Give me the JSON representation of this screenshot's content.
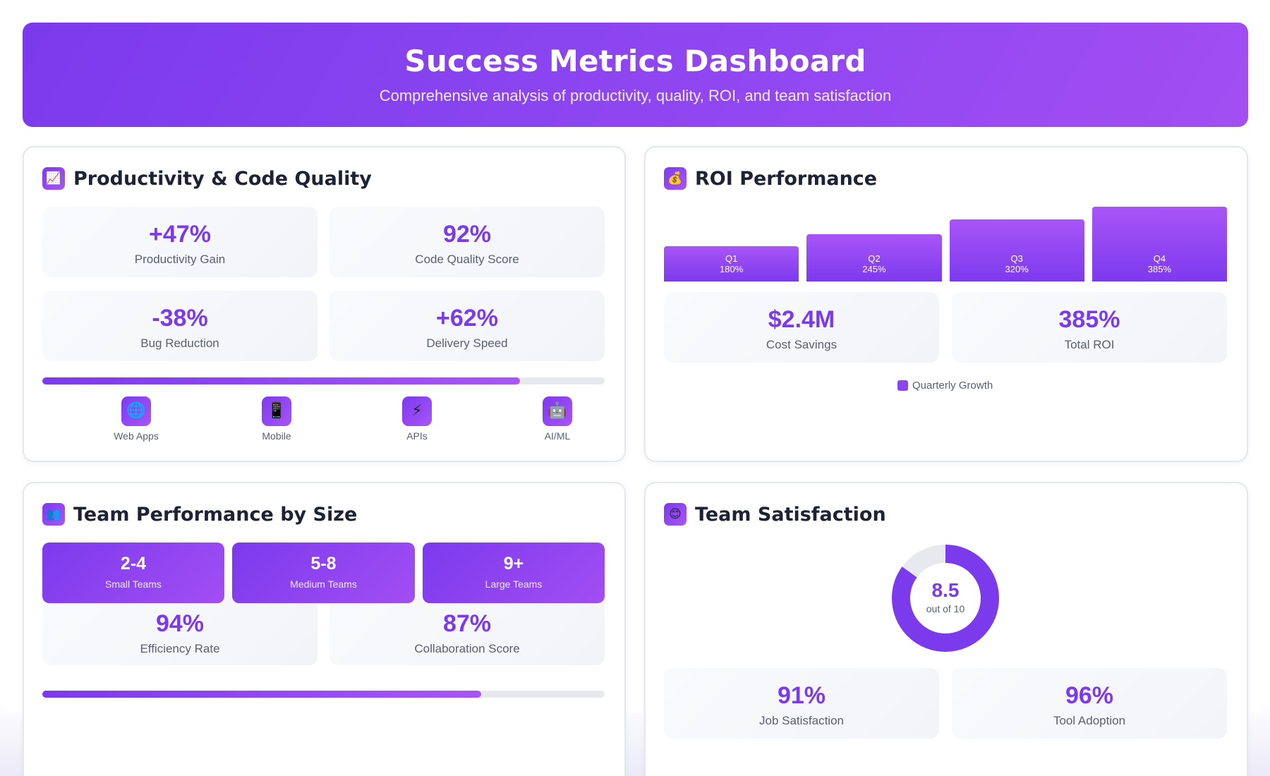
{
  "header": {
    "title": "Success Metrics Dashboard",
    "subtitle": "Comprehensive analysis of productivity, quality, ROI, and team satisfaction"
  },
  "productivity": {
    "title": "Productivity & Code Quality",
    "icon": "chart-increasing-icon",
    "metrics": [
      {
        "value": "+47%",
        "label": "Productivity Gain"
      },
      {
        "value": "92%",
        "label": "Code Quality Score"
      },
      {
        "value": "-38%",
        "label": "Bug Reduction"
      },
      {
        "value": "+62%",
        "label": "Delivery Speed"
      }
    ],
    "progress": 0.85,
    "platforms": [
      {
        "label": "Web Apps",
        "icon": "globe-icon",
        "glyph": "🌐"
      },
      {
        "label": "Mobile",
        "icon": "mobile-phone-icon",
        "glyph": "📱"
      },
      {
        "label": "APIs",
        "icon": "lightning-icon",
        "glyph": "⚡"
      },
      {
        "label": "AI/ML",
        "icon": "robot-icon",
        "glyph": "🤖"
      }
    ]
  },
  "roi": {
    "title": "ROI Performance",
    "icon": "money-bag-icon",
    "metrics": [
      {
        "value": "$2.4M",
        "label": "Cost Savings"
      },
      {
        "value": "385%",
        "label": "Total ROI"
      }
    ],
    "legend": "Quarterly Growth"
  },
  "chart_data": {
    "type": "bar",
    "categories": [
      "Q1",
      "Q2",
      "Q3",
      "Q4"
    ],
    "values": [
      180,
      245,
      320,
      385
    ],
    "value_labels": [
      "180%",
      "245%",
      "320%",
      "385%"
    ],
    "series": [
      {
        "name": "Quarterly Growth",
        "values": [
          180,
          245,
          320,
          385
        ]
      }
    ],
    "legend_position": "bottom-center",
    "grid": false,
    "color": "#8b45f0"
  },
  "team_size": {
    "title": "Team Performance by Size",
    "icon": "people-icon",
    "sizes": [
      {
        "value": "2-4",
        "label": "Small Teams"
      },
      {
        "value": "5-8",
        "label": "Medium Teams"
      },
      {
        "value": "9+",
        "label": "Large Teams"
      }
    ],
    "metrics": [
      {
        "value": "94%",
        "label": "Efficiency Rate"
      },
      {
        "value": "87%",
        "label": "Collaboration Score"
      }
    ],
    "progress": 0.78
  },
  "satisfaction": {
    "title": "Team Satisfaction",
    "icon": "smiling-face-icon",
    "score": "8.5",
    "score_value": 8.5,
    "score_max": 10,
    "score_caption": "out of 10",
    "metrics": [
      {
        "value": "91%",
        "label": "Job Satisfaction"
      },
      {
        "value": "96%",
        "label": "Tool Adoption"
      }
    ]
  },
  "colors": {
    "accent": "#7c3aed",
    "accent_light": "#a855f7",
    "track": "#e7e9ef"
  }
}
